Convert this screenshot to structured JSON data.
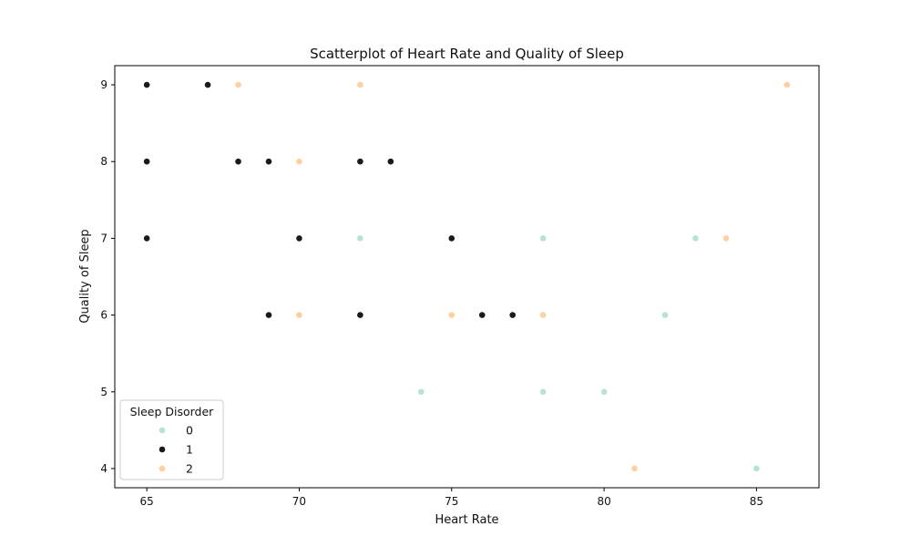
{
  "chart_data": {
    "type": "scatter",
    "title": "Scatterplot of Heart Rate and Quality of Sleep",
    "xlabel": "Heart Rate",
    "ylabel": "Quality of Sleep",
    "xlim": [
      63.95,
      87.05
    ],
    "ylim": [
      3.75,
      9.25
    ],
    "xticks": [
      65,
      70,
      75,
      80,
      85
    ],
    "yticks": [
      4,
      5,
      6,
      7,
      8,
      9
    ],
    "legend": {
      "title": "Sleep Disorder",
      "placement": "lower-left",
      "entries": [
        "0",
        "1",
        "2"
      ]
    },
    "series": [
      {
        "name": "0",
        "color": "#b8e3d2",
        "points": [
          [
            72,
            7
          ],
          [
            74,
            5
          ],
          [
            78,
            7
          ],
          [
            78,
            5
          ],
          [
            80,
            5
          ],
          [
            82,
            6
          ],
          [
            83,
            7
          ],
          [
            85,
            4
          ]
        ]
      },
      {
        "name": "1",
        "color": "#1a1a1a",
        "points": [
          [
            65,
            9
          ],
          [
            65,
            8
          ],
          [
            65,
            7
          ],
          [
            67,
            9
          ],
          [
            68,
            8
          ],
          [
            69,
            8
          ],
          [
            69,
            6
          ],
          [
            70,
            7
          ],
          [
            72,
            8
          ],
          [
            72,
            6
          ],
          [
            73,
            8
          ],
          [
            75,
            7
          ],
          [
            76,
            6
          ],
          [
            77,
            6
          ]
        ]
      },
      {
        "name": "2",
        "color": "#fdd0a2",
        "points": [
          [
            68,
            9
          ],
          [
            70,
            8
          ],
          [
            70,
            6
          ],
          [
            72,
            9
          ],
          [
            75,
            6
          ],
          [
            78,
            6
          ],
          [
            81,
            4
          ],
          [
            84,
            7
          ],
          [
            86,
            9
          ]
        ]
      }
    ],
    "grid": false
  }
}
